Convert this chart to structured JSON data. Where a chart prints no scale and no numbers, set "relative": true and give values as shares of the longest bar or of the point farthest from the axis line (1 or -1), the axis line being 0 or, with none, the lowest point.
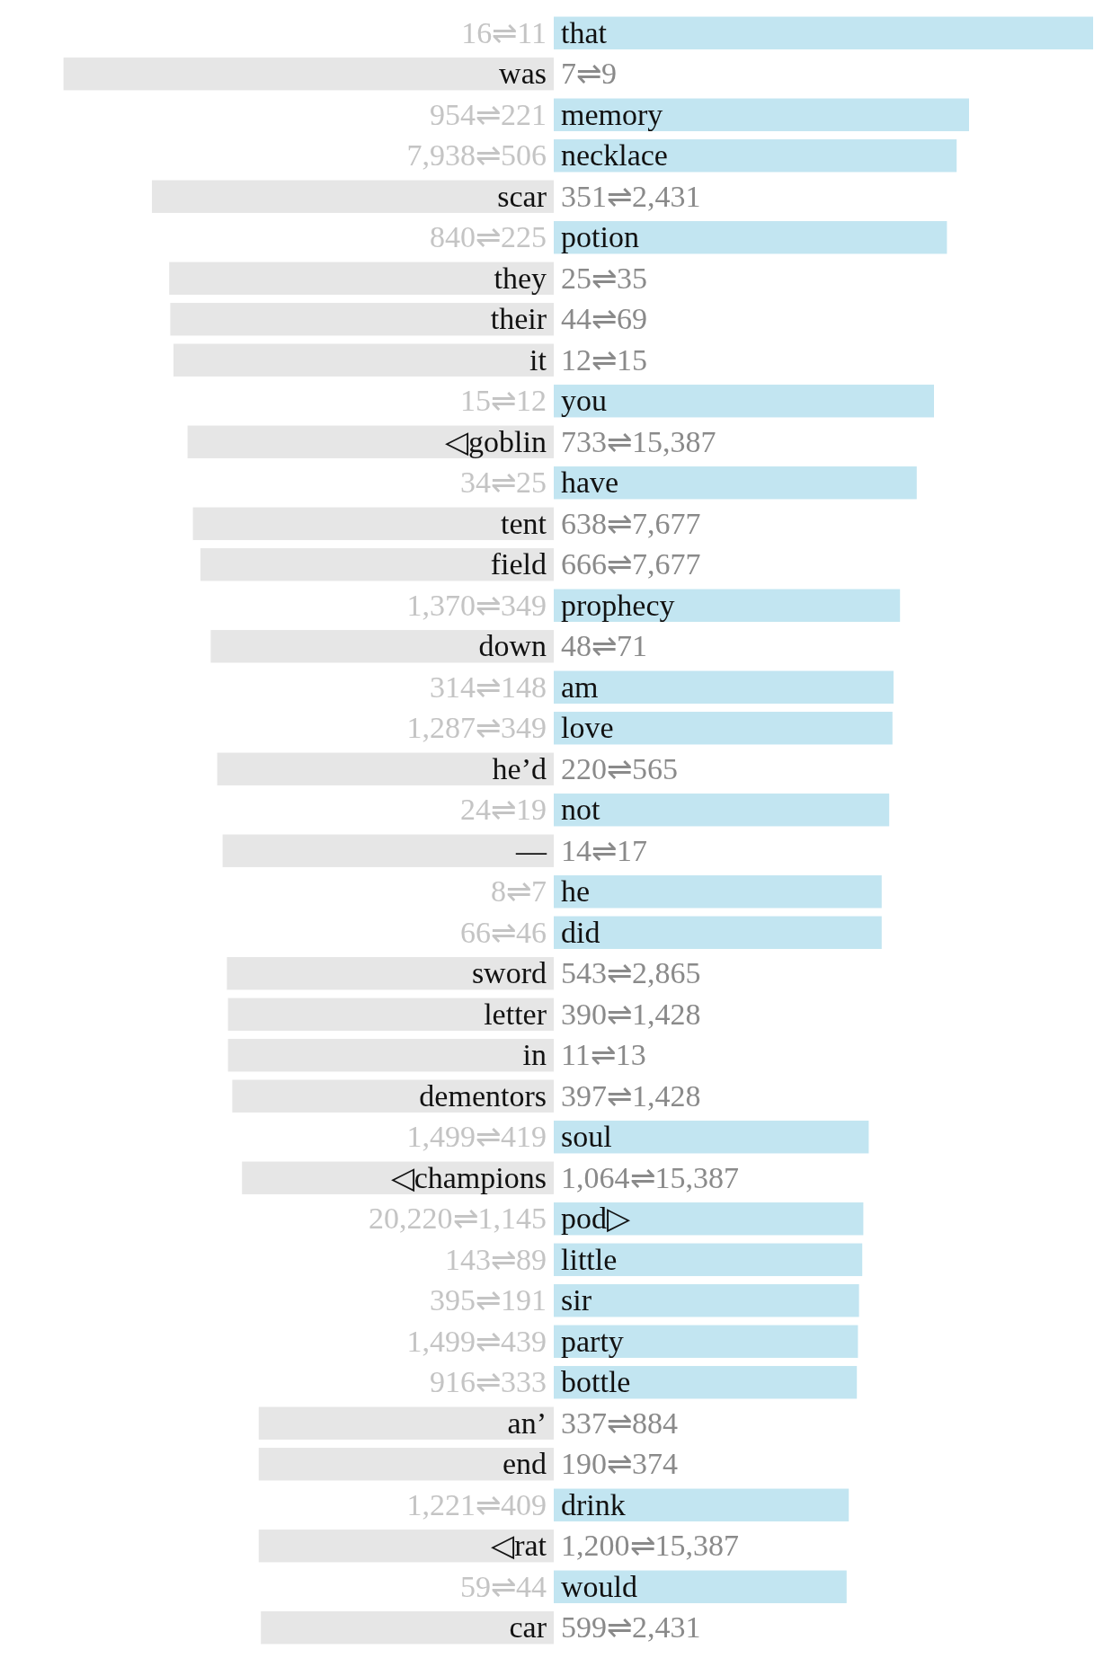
{
  "chart_data": {
    "type": "bar",
    "orientation": "horizontal",
    "relative": true,
    "categories": [
      "that",
      "was",
      "memory",
      "necklace",
      "scar",
      "potion",
      "they",
      "their",
      "it",
      "you",
      "◁goblin",
      "have",
      "tent",
      "field",
      "prophecy",
      "down",
      "am",
      "love",
      "he’d",
      "not",
      "—",
      "he",
      "did",
      "sword",
      "letter",
      "in",
      "dementors",
      "soul",
      "◁champions",
      "pod▷",
      "little",
      "sir",
      "party",
      "bottle",
      "an’",
      "end",
      "drink",
      "◁rat",
      "would",
      "car"
    ],
    "values": [
      1,
      -0.909,
      0.77,
      0.747,
      -0.745,
      0.729,
      -0.713,
      -0.711,
      -0.705,
      0.705,
      -0.679,
      0.673,
      -0.669,
      -0.655,
      0.642,
      -0.636,
      0.63,
      0.628,
      -0.624,
      0.622,
      -0.614,
      0.608,
      0.608,
      -0.606,
      -0.604,
      -0.604,
      -0.596,
      0.584,
      -0.578,
      0.574,
      0.572,
      0.566,
      0.564,
      0.562,
      -0.547,
      -0.547,
      0.547,
      -0.547,
      0.543,
      -0.543
    ],
    "colors": [
      "#c2e5f1",
      "#e6e6e6",
      "#c2e5f1",
      "#c2e5f1",
      "#e6e6e6",
      "#c2e5f1",
      "#e6e6e6",
      "#e6e6e6",
      "#e6e6e6",
      "#c2e5f1",
      "#e6e6e6",
      "#c2e5f1",
      "#e6e6e6",
      "#e6e6e6",
      "#c2e5f1",
      "#e6e6e6",
      "#c2e5f1",
      "#c2e5f1",
      "#e6e6e6",
      "#c2e5f1",
      "#e6e6e6",
      "#c2e5f1",
      "#c2e5f1",
      "#e6e6e6",
      "#e6e6e6",
      "#e6e6e6",
      "#e6e6e6",
      "#c2e5f1",
      "#e6e6e6",
      "#c2e5f1",
      "#c2e5f1",
      "#c2e5f1",
      "#c2e5f1",
      "#c2e5f1",
      "#e6e6e6",
      "#e6e6e6",
      "#c2e5f1",
      "#e6e6e6",
      "#c2e5f1",
      "#e6e6e6"
    ],
    "annotations": [
      "16⇌11",
      "7⇌9",
      "954⇌221",
      "7,938⇌506",
      "351⇌2,431",
      "840⇌225",
      "25⇌35",
      "44⇌69",
      "12⇌15",
      "15⇌12",
      "733⇌15,387",
      "34⇌25",
      "638⇌7,677",
      "666⇌7,677",
      "1,370⇌349",
      "48⇌71",
      "314⇌148",
      "1,287⇌349",
      "220⇌565",
      "24⇌19",
      "14⇌17",
      "8⇌7",
      "66⇌46",
      "543⇌2,865",
      "390⇌1,428",
      "11⇌13",
      "397⇌1,428",
      "1,499⇌419",
      "1,064⇌15,387",
      "20,220⇌1,145",
      "143⇌89",
      "395⇌191",
      "1,499⇌439",
      "916⇌333",
      "337⇌884",
      "190⇌374",
      "1,221⇌409",
      "1,200⇌15,387",
      "59⇌44",
      "599⇌2,431"
    ]
  }
}
